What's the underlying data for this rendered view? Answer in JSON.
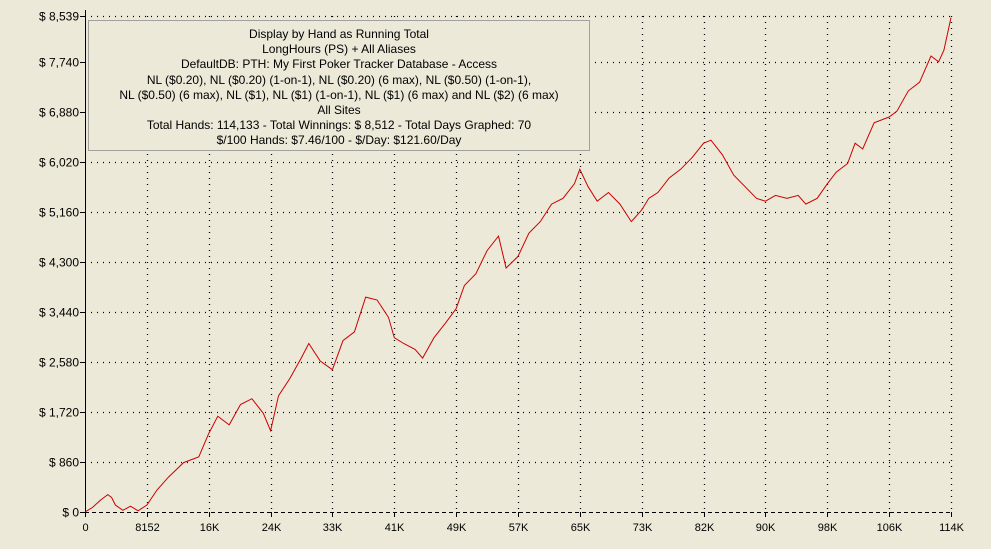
{
  "info": {
    "lines": [
      "Display by Hand as Running Total",
      "LongHours (PS) + All Aliases",
      "DefaultDB: PTH: My First Poker Tracker Database - Access",
      "NL ($0.20), NL ($0.20) (1-on-1), NL ($0.20) (6 max), NL ($0.50) (1-on-1),",
      "NL ($0.50) (6 max), NL ($1), NL ($1) (1-on-1), NL ($1) (6 max) and NL ($2) (6 max)",
      "All Sites",
      "Total Hands: 114,133 - Total Winnings: $ 8,512 - Total Days Graphed: 70",
      "$/100 Hands: $7.46/100 - $/Day: $121.60/Day"
    ]
  },
  "colors": {
    "line": "#cc0000",
    "background": "#ece9d8",
    "grid": "#000000"
  },
  "chart_data": {
    "type": "line",
    "title": "",
    "xlabel": "",
    "ylabel": "",
    "grid": true,
    "xlim": [
      0,
      114133
    ],
    "ylim": [
      0,
      8539
    ],
    "yticks": [
      0,
      860,
      1720,
      2580,
      3440,
      4300,
      5160,
      6020,
      6880,
      7740,
      8539
    ],
    "ytick_labels": [
      "$ 0",
      "$ 860",
      "$ 1,720",
      "$ 2,580",
      "$ 3,440",
      "$ 4,300",
      "$ 5,160",
      "$ 6,020",
      "$ 6,880",
      "$ 7,740",
      "$ 8,539"
    ],
    "xticks": [
      0,
      8152,
      16304,
      24456,
      32609,
      40761,
      48913,
      57065,
      65217,
      73370,
      81522,
      89674,
      97826,
      105978,
      114133
    ],
    "xtick_labels": [
      "0",
      "8152",
      "16K",
      "24K",
      "33K",
      "41K",
      "49K",
      "57K",
      "65K",
      "73K",
      "82K",
      "90K",
      "98K",
      "106K",
      "114K"
    ],
    "series": [
      {
        "x": [
          0,
          1000,
          2000,
          3000,
          3500,
          4000,
          5000,
          6000,
          7000,
          8152,
          9500,
          11000,
          13000,
          15000,
          16304,
          17500,
          19000,
          20500,
          22000,
          23500,
          24456,
          25500,
          27000,
          28500,
          29500,
          31000,
          32609,
          34000,
          35500,
          37000,
          38500,
          40000,
          40761,
          42000,
          43500,
          44500,
          46000,
          47500,
          48913,
          50000,
          51500,
          53000,
          54500,
          55500,
          57065,
          58500,
          60000,
          61500,
          63000,
          64500,
          65217,
          66300,
          67500,
          69000,
          70500,
          72000,
          73370,
          74300,
          75500,
          77000,
          78500,
          80000,
          81522,
          82500,
          84000,
          85500,
          87000,
          88500,
          89674,
          91000,
          92500,
          94000,
          95000,
          96500,
          97826,
          99000,
          100500,
          101500,
          102500,
          104000,
          105978,
          107000,
          108500,
          110000,
          111500,
          112500,
          113200,
          114133
        ],
        "y": [
          0,
          80,
          200,
          300,
          250,
          120,
          30,
          100,
          20,
          120,
          380,
          600,
          850,
          950,
          1350,
          1650,
          1500,
          1850,
          1950,
          1700,
          1400,
          2000,
          2300,
          2650,
          2900,
          2600,
          2450,
          2950,
          3100,
          3700,
          3650,
          3350,
          3000,
          2900,
          2800,
          2650,
          3000,
          3250,
          3500,
          3900,
          4100,
          4500,
          4750,
          4200,
          4400,
          4800,
          5000,
          5300,
          5400,
          5650,
          5900,
          5600,
          5350,
          5500,
          5300,
          5000,
          5200,
          5400,
          5500,
          5750,
          5900,
          6100,
          6350,
          6400,
          6150,
          5800,
          5600,
          5400,
          5350,
          5450,
          5400,
          5450,
          5300,
          5400,
          5650,
          5850,
          6000,
          6350,
          6250,
          6700,
          6800,
          6900,
          7250,
          7400,
          7850,
          7750,
          7950,
          8512
        ]
      }
    ]
  }
}
